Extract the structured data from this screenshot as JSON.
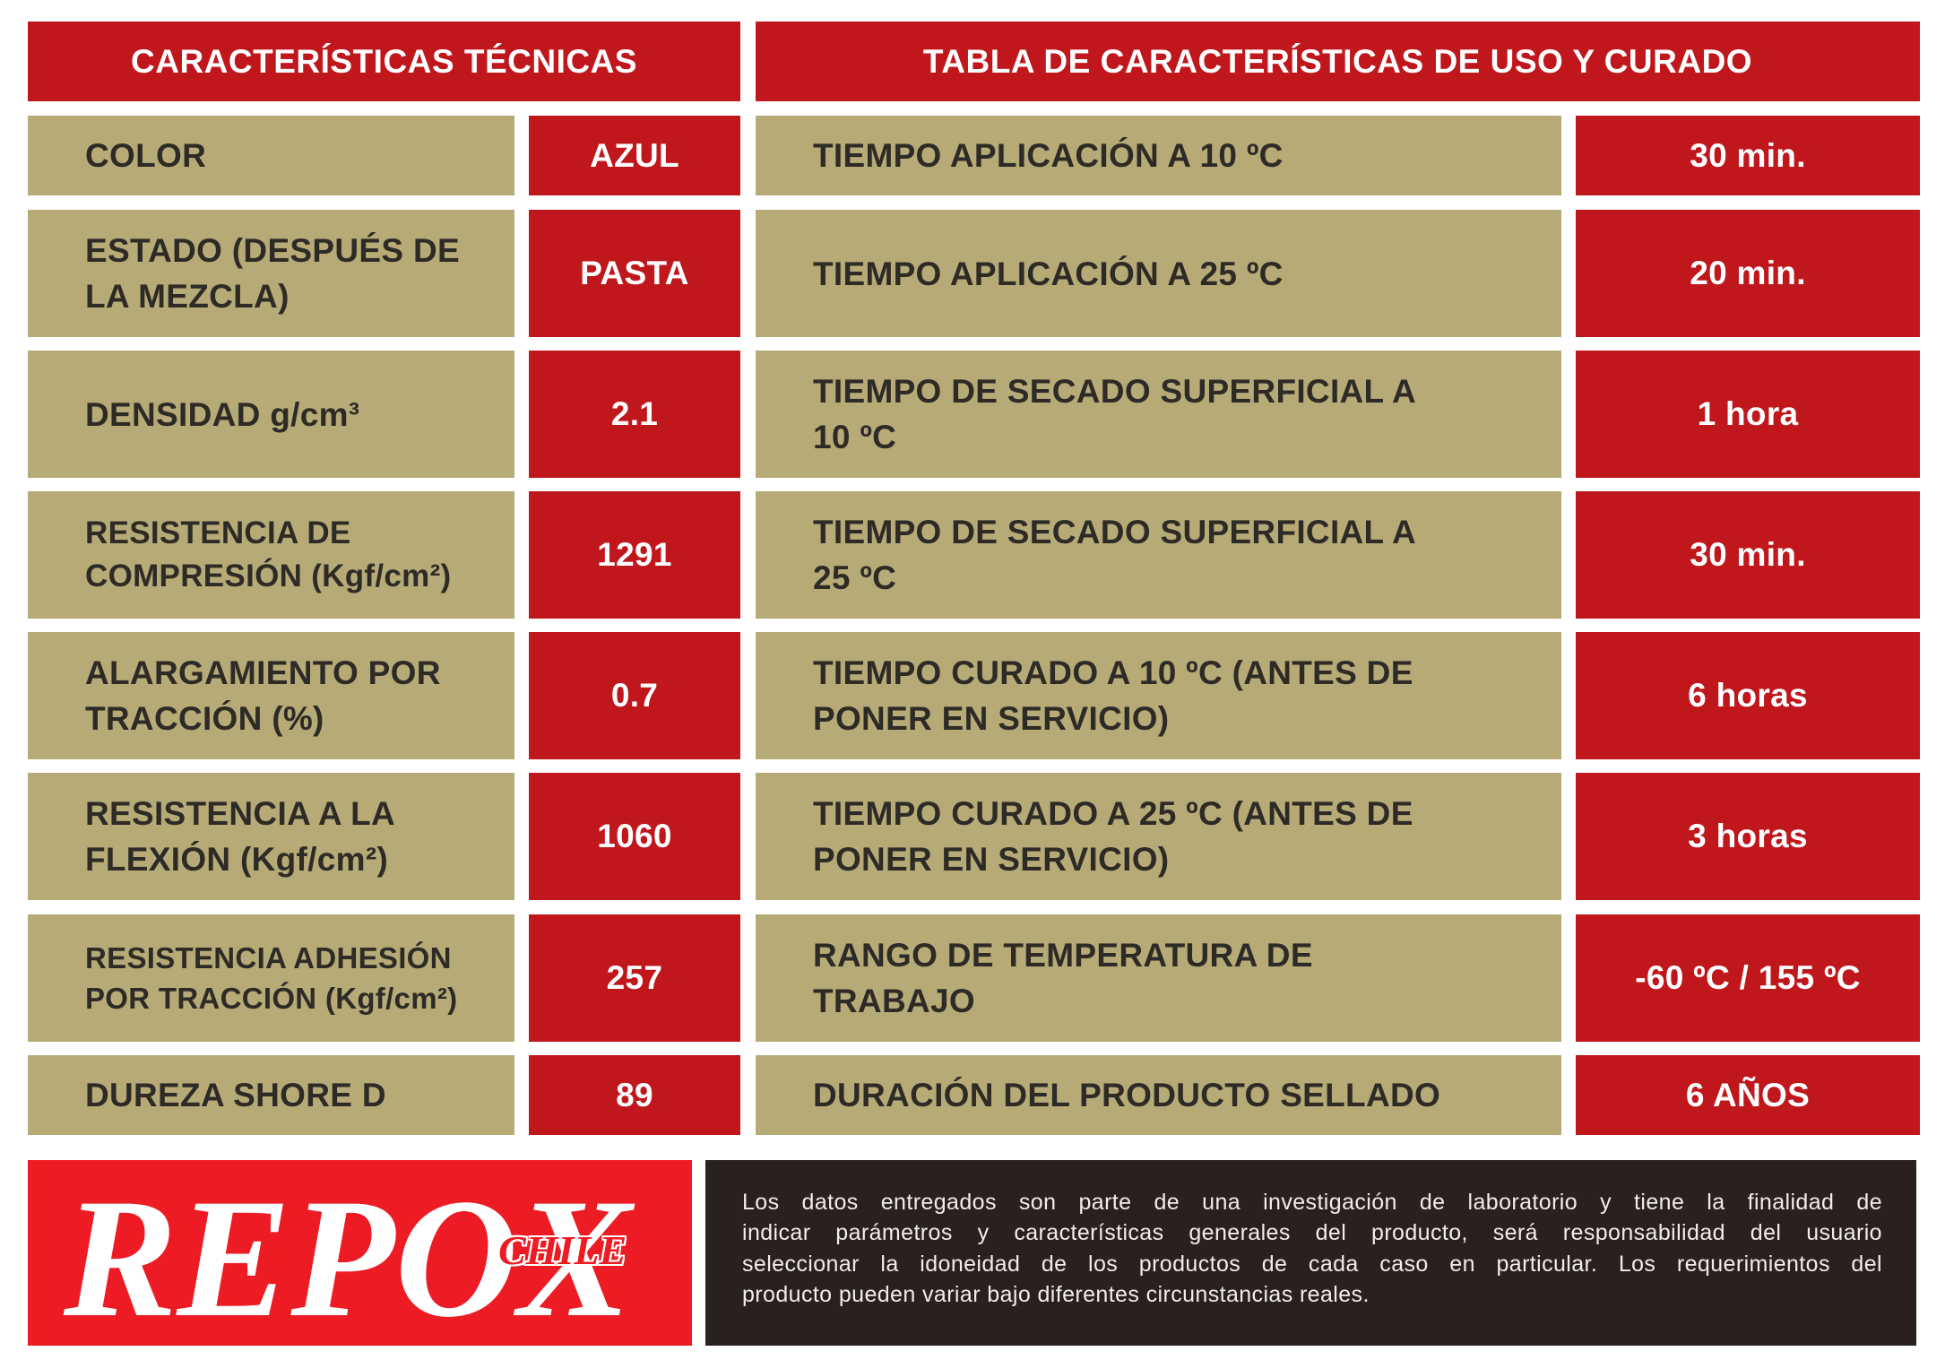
{
  "left_table": {
    "header": "CARACTERÍSTICAS TÉCNICAS",
    "rows": [
      {
        "label": "COLOR",
        "value": "AZUL"
      },
      {
        "label": "ESTADO (DESPUÉS DE\nLA MEZCLA)",
        "value": "PASTA"
      },
      {
        "label": "DENSIDAD g/cm³",
        "value": "2.1"
      },
      {
        "label": "RESISTENCIA DE\nCOMPRESIÓN (Kgf/cm²)",
        "value": "1291"
      },
      {
        "label": "ALARGAMIENTO POR\nTRACCIÓN (%)",
        "value": "0.7"
      },
      {
        "label": "RESISTENCIA A LA\nFLEXIÓN (Kgf/cm²)",
        "value": "1060"
      },
      {
        "label": "RESISTENCIA ADHESIÓN\nPOR TRACCIÓN (Kgf/cm²)",
        "value": "257"
      },
      {
        "label": "DUREZA SHORE D",
        "value": "89"
      }
    ]
  },
  "right_table": {
    "header": "TABLA DE CARACTERÍSTICAS DE USO Y CURADO",
    "rows": [
      {
        "label": "TIEMPO APLICACIÓN A 10 ºC",
        "value": "30 min."
      },
      {
        "label": "TIEMPO APLICACIÓN A 25 ºC",
        "value": "20 min."
      },
      {
        "label": "TIEMPO DE SECADO SUPERFICIAL A\n10 ºC",
        "value": "1 hora"
      },
      {
        "label": "TIEMPO DE SECADO SUPERFICIAL A\n25 ºC",
        "value": "30 min."
      },
      {
        "label": "TIEMPO CURADO A 10 ºC (ANTES DE\nPONER EN SERVICIO)",
        "value": "6 horas"
      },
      {
        "label": "TIEMPO CURADO A 25 ºC (ANTES DE\nPONER EN SERVICIO)",
        "value": "3 horas"
      },
      {
        "label": "RANGO DE TEMPERATURA DE\nTRABAJO",
        "value": "-60 ºC / 155 ºC"
      },
      {
        "label": "DURACIÓN DEL PRODUCTO SELLADO",
        "value": "6 AÑOS"
      }
    ]
  },
  "logo": {
    "wordmark": "REPOX",
    "subtitle": "CHILE"
  },
  "disclaimer": {
    "lines": [
      "Los datos entregados son parte de una investigación de laboratorio y tiene la finalidad de",
      "indicar parámetros y características generales del producto, será responsabilidad del usuario",
      "seleccionar la idoneidad de los productos de cada caso en particular. Los requerimientos del",
      "producto pueden variar bajo diferentes circunstancias reales."
    ]
  },
  "colors": {
    "header_red": "#C0171D",
    "label_tan": "#B6AB77",
    "logo_red": "#ED1C24",
    "footer_dark": "#2A2020",
    "text_dark": "#2E2B27"
  }
}
